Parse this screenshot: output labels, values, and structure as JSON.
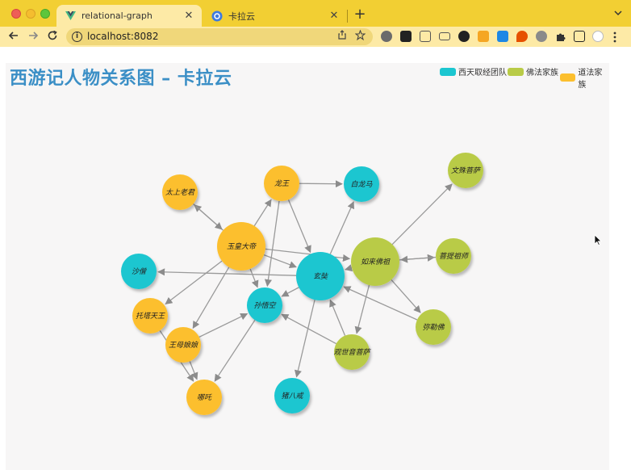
{
  "browser": {
    "tabs": [
      {
        "title": "relational-graph",
        "favicon": "vue-logo-icon",
        "active": true
      },
      {
        "title": "卡拉云",
        "favicon": "kalayun-logo-icon",
        "active": false
      }
    ],
    "close_glyph": "✕",
    "new_tab_glyph": "+",
    "url": "localhost:8082"
  },
  "page": {
    "title": "西游记人物关系图 – 卡拉云"
  },
  "legend": [
    {
      "label": "西天取经团队",
      "color": "#1bc6d0"
    },
    {
      "label": "佛法家族",
      "color": "#b9cb47"
    },
    {
      "label": "道法家族",
      "color": "#fcbf2e"
    }
  ],
  "graph": {
    "nodes": [
      {
        "id": "taishang",
        "name": "太上老君",
        "group": 2
      },
      {
        "id": "longwang",
        "name": "龙王",
        "group": 2
      },
      {
        "id": "bailongma",
        "name": "白龙马",
        "group": 0
      },
      {
        "id": "wenshu",
        "name": "文殊菩萨",
        "group": 1
      },
      {
        "id": "yuhuang",
        "name": "玉皇大帝",
        "group": 2
      },
      {
        "id": "rulai",
        "name": "如来佛祖",
        "group": 1
      },
      {
        "id": "puti",
        "name": "菩提祖师",
        "group": 1
      },
      {
        "id": "shaseng",
        "name": "沙僧",
        "group": 0
      },
      {
        "id": "xuanzang",
        "name": "玄奘",
        "group": 0
      },
      {
        "id": "sunwukong",
        "name": "孙悟空",
        "group": 0
      },
      {
        "id": "tuota",
        "name": "托塔天王",
        "group": 2
      },
      {
        "id": "mile",
        "name": "弥勒佛",
        "group": 1
      },
      {
        "id": "wangmu",
        "name": "王母娘娘",
        "group": 2
      },
      {
        "id": "guanyin",
        "name": "观世音菩萨",
        "group": 1
      },
      {
        "id": "nezha",
        "name": "哪吒",
        "group": 2
      },
      {
        "id": "zhubajie",
        "name": "猪八戒",
        "group": 0
      }
    ],
    "links": [
      [
        "yuhuang",
        "taishang"
      ],
      [
        "taishang",
        "yuhuang"
      ],
      [
        "yuhuang",
        "longwang"
      ],
      [
        "longwang",
        "bailongma"
      ],
      [
        "longwang",
        "xuanzang"
      ],
      [
        "longwang",
        "sunwukong"
      ],
      [
        "yuhuang",
        "xuanzang"
      ],
      [
        "yuhuang",
        "sunwukong"
      ],
      [
        "yuhuang",
        "tuota"
      ],
      [
        "yuhuang",
        "wangmu"
      ],
      [
        "yuhuang",
        "rulai"
      ],
      [
        "xuanzang",
        "bailongma"
      ],
      [
        "xuanzang",
        "shaseng"
      ],
      [
        "xuanzang",
        "sunwukong"
      ],
      [
        "xuanzang",
        "zhubajie"
      ],
      [
        "rulai",
        "wenshu"
      ],
      [
        "rulai",
        "puti"
      ],
      [
        "puti",
        "rulai"
      ],
      [
        "rulai",
        "mile"
      ],
      [
        "rulai",
        "guanyin"
      ],
      [
        "rulai",
        "xuanzang"
      ],
      [
        "mile",
        "xuanzang"
      ],
      [
        "guanyin",
        "xuanzang"
      ],
      [
        "guanyin",
        "sunwukong"
      ],
      [
        "wangmu",
        "sunwukong"
      ],
      [
        "wangmu",
        "nezha"
      ],
      [
        "tuota",
        "nezha"
      ],
      [
        "sunwukong",
        "nezha"
      ]
    ]
  }
}
